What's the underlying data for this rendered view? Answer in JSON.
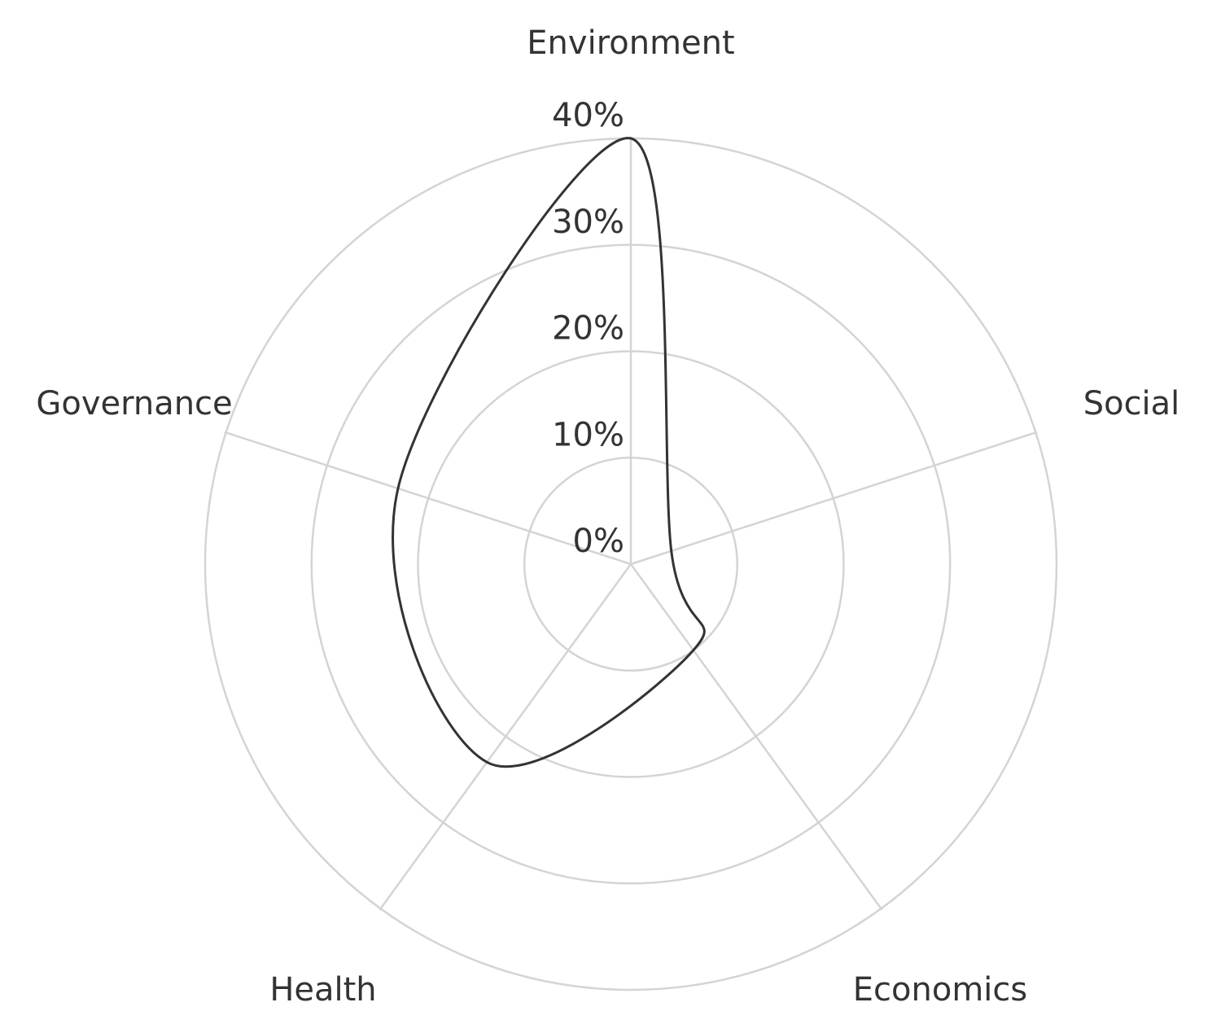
{
  "chart_data": {
    "type": "radar",
    "categories": [
      "Environment",
      "Social",
      "Economics",
      "Health",
      "Governance"
    ],
    "values": [
      40,
      4,
      10,
      23,
      23
    ],
    "color": "#333333",
    "ylim": [
      0,
      40
    ],
    "yticks": [
      {
        "value": 0,
        "label": "0%"
      },
      {
        "value": 10,
        "label": "10%"
      },
      {
        "value": 20,
        "label": "20%"
      },
      {
        "value": 30,
        "label": "30%"
      },
      {
        "value": 40,
        "label": "40%"
      }
    ],
    "grid": true
  }
}
